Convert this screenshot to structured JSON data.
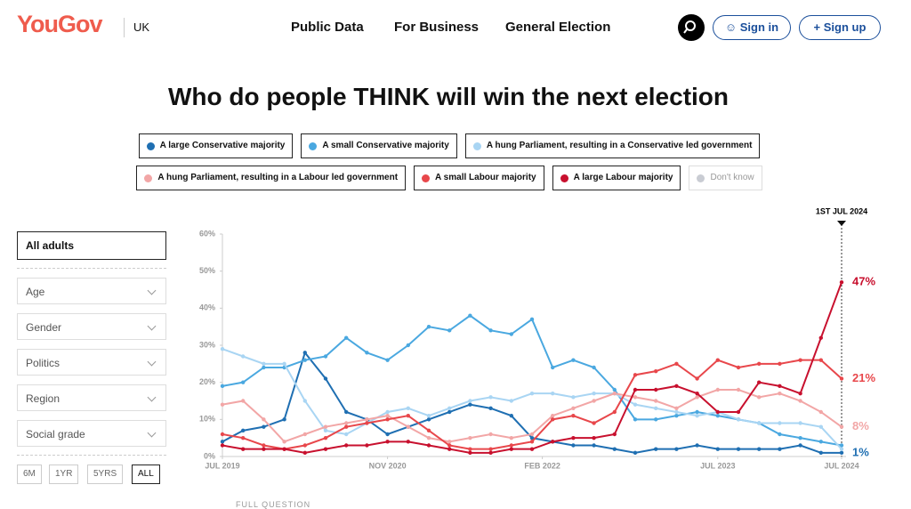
{
  "header": {
    "logo": "YouGov",
    "region": "UK",
    "nav": [
      "Public Data",
      "For Business",
      "General Election"
    ],
    "sign_in": "Sign in",
    "sign_up": "Sign up"
  },
  "filters": {
    "selected": "All adults",
    "dropdowns": [
      "Age",
      "Gender",
      "Politics",
      "Region",
      "Social grade"
    ],
    "ranges": [
      "6M",
      "1YR",
      "5YRS",
      "ALL"
    ],
    "active_range": "ALL"
  },
  "footer_link": "FULL QUESTION",
  "chart_data": {
    "type": "line",
    "title": "Who do people THINK will win the next election",
    "annotation": "1ST JUL 2024",
    "inactive_legend": {
      "name": "Don't know",
      "color": "#c9ccd3"
    },
    "x": [
      "2019-07",
      "2019-09",
      "2019-11",
      "2020-01",
      "2020-03",
      "2020-05",
      "2020-07",
      "2020-09",
      "2020-11",
      "2021-01",
      "2021-03",
      "2021-05",
      "2021-07",
      "2021-09",
      "2021-11",
      "2022-01",
      "2022-03",
      "2022-05",
      "2022-07",
      "2022-09",
      "2022-11",
      "2023-01",
      "2023-03",
      "2023-05",
      "2023-07",
      "2023-09",
      "2023-11",
      "2024-01",
      "2024-03",
      "2024-05",
      "2024-07"
    ],
    "xlim": [
      "2019-07",
      "2024-07"
    ],
    "xticks": [
      {
        "value": "2019-07",
        "label": "JUL 2019"
      },
      {
        "value": "2020-11",
        "label": "NOV 2020"
      },
      {
        "value": "2022-02",
        "label": "FEB 2022"
      },
      {
        "value": "2023-07",
        "label": "JUL 2023"
      },
      {
        "value": "2024-07",
        "label": "JUL 2024"
      }
    ],
    "ylim": [
      0,
      60
    ],
    "yticks": [
      {
        "value": 0,
        "label": "0%"
      },
      {
        "value": 10,
        "label": "10%"
      },
      {
        "value": 20,
        "label": "20%"
      },
      {
        "value": 30,
        "label": "30%"
      },
      {
        "value": 40,
        "label": "40%"
      },
      {
        "value": 50,
        "label": "50%"
      },
      {
        "value": 60,
        "label": "60%"
      }
    ],
    "series": [
      {
        "name": "A large Conservative majority",
        "color": "#1f6fb2",
        "values": [
          4,
          7,
          8,
          10,
          28,
          21,
          12,
          10,
          6,
          8,
          10,
          12,
          14,
          13,
          11,
          5,
          4,
          3,
          3,
          2,
          1,
          2,
          2,
          3,
          2,
          2,
          2,
          2,
          3,
          1,
          1
        ],
        "value_labels": [
          null,
          null,
          null,
          null,
          null,
          null,
          null,
          null,
          null,
          null,
          null,
          null,
          null,
          null,
          null,
          null,
          null,
          null,
          null,
          null,
          null,
          null,
          null,
          null,
          null,
          null,
          null,
          null,
          null,
          null,
          "1%"
        ]
      },
      {
        "name": "A small Conservative majority",
        "color": "#4aa8e0",
        "values": [
          19,
          20,
          24,
          24,
          26,
          27,
          32,
          28,
          26,
          30,
          35,
          34,
          38,
          34,
          33,
          37,
          24,
          26,
          24,
          18,
          10,
          10,
          11,
          12,
          11,
          10,
          9,
          6,
          5,
          4,
          3
        ]
      },
      {
        "name": "A hung Parliament, resulting in a Conservative led government",
        "color": "#a9d5f3",
        "values": [
          29,
          27,
          25,
          25,
          15,
          7,
          6,
          9,
          12,
          13,
          11,
          13,
          15,
          16,
          15,
          17,
          17,
          16,
          17,
          17,
          14,
          13,
          12,
          11,
          12,
          10,
          9,
          9,
          9,
          8,
          2
        ]
      },
      {
        "name": "A hung Parliament, resulting in a Labour led government",
        "color": "#f2a6a6",
        "values": [
          14,
          15,
          10,
          4,
          6,
          8,
          9,
          10,
          11,
          8,
          5,
          4,
          5,
          6,
          5,
          6,
          11,
          13,
          15,
          17,
          16,
          15,
          13,
          16,
          18,
          18,
          16,
          17,
          15,
          12,
          8
        ],
        "value_labels": [
          null,
          null,
          null,
          null,
          null,
          null,
          null,
          null,
          null,
          null,
          null,
          null,
          null,
          null,
          null,
          null,
          null,
          null,
          null,
          null,
          null,
          null,
          null,
          null,
          null,
          null,
          null,
          null,
          null,
          null,
          "8%"
        ]
      },
      {
        "name": "A small Labour majority",
        "color": "#e8474b",
        "values": [
          6,
          5,
          3,
          2,
          3,
          5,
          8,
          9,
          10,
          11,
          7,
          3,
          2,
          2,
          3,
          4,
          10,
          11,
          9,
          12,
          22,
          23,
          25,
          21,
          26,
          24,
          25,
          25,
          26,
          26,
          21
        ],
        "value_labels": [
          null,
          null,
          null,
          null,
          null,
          null,
          null,
          null,
          null,
          null,
          null,
          null,
          null,
          null,
          null,
          null,
          null,
          null,
          null,
          null,
          null,
          null,
          null,
          null,
          null,
          null,
          null,
          null,
          null,
          null,
          "21%"
        ]
      },
      {
        "name": "A large Labour majority",
        "color": "#c8102e",
        "values": [
          3,
          2,
          2,
          2,
          1,
          2,
          3,
          3,
          4,
          4,
          3,
          2,
          1,
          1,
          2,
          2,
          4,
          5,
          5,
          6,
          18,
          18,
          19,
          17,
          12,
          12,
          20,
          19,
          17,
          32,
          47
        ],
        "value_labels": [
          null,
          null,
          null,
          null,
          null,
          null,
          null,
          null,
          null,
          null,
          null,
          null,
          null,
          null,
          null,
          null,
          null,
          null,
          null,
          null,
          null,
          null,
          null,
          null,
          null,
          null,
          null,
          null,
          null,
          null,
          "47%"
        ]
      }
    ]
  }
}
